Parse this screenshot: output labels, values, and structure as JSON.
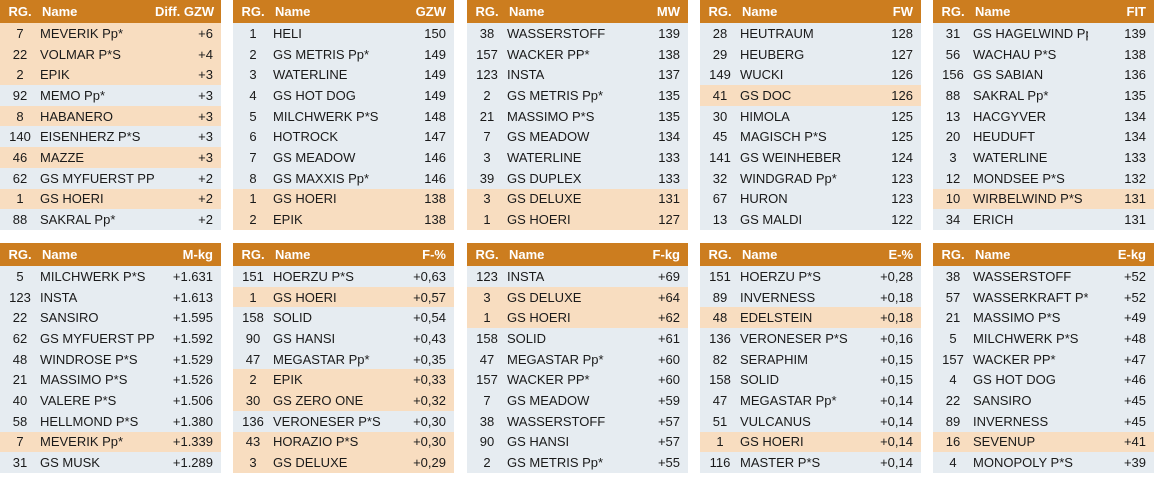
{
  "colors": {
    "header": "#cc7d1f",
    "row_default": "#e6ecf1",
    "row_highlight": "#f8ddc0"
  },
  "tables": [
    {
      "headers": {
        "rank": "RG.",
        "name": "Name",
        "value": "Diff. GZW"
      },
      "rows": [
        {
          "rank": "7",
          "name": "MEVERIK Pp*",
          "value": "+6",
          "highlight": true
        },
        {
          "rank": "22",
          "name": "VOLMAR P*S",
          "value": "+4",
          "highlight": true
        },
        {
          "rank": "2",
          "name": "EPIK",
          "value": "+3",
          "highlight": true
        },
        {
          "rank": "92",
          "name": "MEMO Pp*",
          "value": "+3",
          "highlight": false
        },
        {
          "rank": "8",
          "name": "HABANERO",
          "value": "+3",
          "highlight": true
        },
        {
          "rank": "140",
          "name": "EISENHERZ P*S",
          "value": "+3",
          "highlight": false
        },
        {
          "rank": "46",
          "name": "MAZZE",
          "value": "+3",
          "highlight": true
        },
        {
          "rank": "62",
          "name": "GS MYFUERST PP*",
          "value": "+2",
          "highlight": false
        },
        {
          "rank": "1",
          "name": "GS HOERI",
          "value": "+2",
          "highlight": true
        },
        {
          "rank": "88",
          "name": "SAKRAL Pp*",
          "value": "+2",
          "highlight": false
        }
      ]
    },
    {
      "headers": {
        "rank": "RG.",
        "name": "Name",
        "value": "GZW"
      },
      "rows": [
        {
          "rank": "1",
          "name": "HELI",
          "value": "150",
          "highlight": false
        },
        {
          "rank": "2",
          "name": "GS METRIS Pp*",
          "value": "149",
          "highlight": false
        },
        {
          "rank": "3",
          "name": "WATERLINE",
          "value": "149",
          "highlight": false
        },
        {
          "rank": "4",
          "name": "GS HOT DOG",
          "value": "149",
          "highlight": false
        },
        {
          "rank": "5",
          "name": "MILCHWERK P*S",
          "value": "148",
          "highlight": false
        },
        {
          "rank": "6",
          "name": "HOTROCK",
          "value": "147",
          "highlight": false
        },
        {
          "rank": "7",
          "name": "GS MEADOW",
          "value": "146",
          "highlight": false
        },
        {
          "rank": "8",
          "name": "GS MAXXIS Pp*",
          "value": "146",
          "highlight": false
        },
        {
          "rank": "1",
          "name": "GS HOERI",
          "value": "138",
          "highlight": true
        },
        {
          "rank": "2",
          "name": "EPIK",
          "value": "138",
          "highlight": true
        }
      ]
    },
    {
      "headers": {
        "rank": "RG.",
        "name": "Name",
        "value": "MW"
      },
      "rows": [
        {
          "rank": "38",
          "name": "WASSERSTOFF",
          "value": "139",
          "highlight": false
        },
        {
          "rank": "157",
          "name": "WACKER PP*",
          "value": "138",
          "highlight": false
        },
        {
          "rank": "123",
          "name": "INSTA",
          "value": "137",
          "highlight": false
        },
        {
          "rank": "2",
          "name": "GS METRIS Pp*",
          "value": "135",
          "highlight": false
        },
        {
          "rank": "21",
          "name": "MASSIMO P*S",
          "value": "135",
          "highlight": false
        },
        {
          "rank": "7",
          "name": "GS MEADOW",
          "value": "134",
          "highlight": false
        },
        {
          "rank": "3",
          "name": "WATERLINE",
          "value": "133",
          "highlight": false
        },
        {
          "rank": "39",
          "name": "GS DUPLEX",
          "value": "133",
          "highlight": false
        },
        {
          "rank": "3",
          "name": "GS DELUXE",
          "value": "131",
          "highlight": true
        },
        {
          "rank": "1",
          "name": "GS HOERI",
          "value": "127",
          "highlight": true
        }
      ]
    },
    {
      "headers": {
        "rank": "RG.",
        "name": "Name",
        "value": "FW"
      },
      "rows": [
        {
          "rank": "28",
          "name": "HEUTRAUM",
          "value": "128",
          "highlight": false
        },
        {
          "rank": "29",
          "name": "HEUBERG",
          "value": "127",
          "highlight": false
        },
        {
          "rank": "149",
          "name": "WUCKI",
          "value": "126",
          "highlight": false
        },
        {
          "rank": "41",
          "name": "GS DOC",
          "value": "126",
          "highlight": true
        },
        {
          "rank": "30",
          "name": "HIMOLA",
          "value": "125",
          "highlight": false
        },
        {
          "rank": "45",
          "name": "MAGISCH P*S",
          "value": "125",
          "highlight": false
        },
        {
          "rank": "141",
          "name": "GS WEINHEBER",
          "value": "124",
          "highlight": false
        },
        {
          "rank": "32",
          "name": "WINDGRAD Pp*",
          "value": "123",
          "highlight": false
        },
        {
          "rank": "67",
          "name": "HURON",
          "value": "123",
          "highlight": false
        },
        {
          "rank": "13",
          "name": "GS MALDI",
          "value": "122",
          "highlight": false
        }
      ]
    },
    {
      "headers": {
        "rank": "RG.",
        "name": "Name",
        "value": "FIT"
      },
      "rows": [
        {
          "rank": "31",
          "name": "GS HAGELWIND Pp*",
          "value": "139",
          "highlight": false
        },
        {
          "rank": "56",
          "name": "WACHAU P*S",
          "value": "138",
          "highlight": false
        },
        {
          "rank": "156",
          "name": "GS SABIAN",
          "value": "136",
          "highlight": false
        },
        {
          "rank": "88",
          "name": "SAKRAL Pp*",
          "value": "135",
          "highlight": false
        },
        {
          "rank": "13",
          "name": "HACGYVER",
          "value": "134",
          "highlight": false
        },
        {
          "rank": "20",
          "name": "HEUDUFT",
          "value": "134",
          "highlight": false
        },
        {
          "rank": "3",
          "name": "WATERLINE",
          "value": "133",
          "highlight": false
        },
        {
          "rank": "12",
          "name": "MONDSEE P*S",
          "value": "132",
          "highlight": false
        },
        {
          "rank": "10",
          "name": "WIRBELWIND P*S",
          "value": "131",
          "highlight": true
        },
        {
          "rank": "34",
          "name": "ERICH",
          "value": "131",
          "highlight": false
        }
      ]
    },
    {
      "headers": {
        "rank": "RG.",
        "name": "Name",
        "value": "M-kg"
      },
      "rows": [
        {
          "rank": "5",
          "name": "MILCHWERK P*S",
          "value": "+1.631",
          "highlight": false
        },
        {
          "rank": "123",
          "name": "INSTA",
          "value": "+1.613",
          "highlight": false
        },
        {
          "rank": "22",
          "name": "SANSIRO",
          "value": "+1.595",
          "highlight": false
        },
        {
          "rank": "62",
          "name": "GS MYFUERST PP*",
          "value": "+1.592",
          "highlight": false
        },
        {
          "rank": "48",
          "name": "WINDROSE P*S",
          "value": "+1.529",
          "highlight": false
        },
        {
          "rank": "21",
          "name": "MASSIMO P*S",
          "value": "+1.526",
          "highlight": false
        },
        {
          "rank": "40",
          "name": "VALERE P*S",
          "value": "+1.506",
          "highlight": false
        },
        {
          "rank": "58",
          "name": "HELLMOND P*S",
          "value": "+1.380",
          "highlight": false
        },
        {
          "rank": "7",
          "name": "MEVERIK Pp*",
          "value": "+1.339",
          "highlight": true
        },
        {
          "rank": "31",
          "name": "GS MUSK",
          "value": "+1.289",
          "highlight": false
        }
      ]
    },
    {
      "headers": {
        "rank": "RG.",
        "name": "Name",
        "value": "F-%"
      },
      "rows": [
        {
          "rank": "151",
          "name": "HOERZU P*S",
          "value": "+0,63",
          "highlight": false
        },
        {
          "rank": "1",
          "name": "GS HOERI",
          "value": "+0,57",
          "highlight": true
        },
        {
          "rank": "158",
          "name": "SOLID",
          "value": "+0,54",
          "highlight": false
        },
        {
          "rank": "90",
          "name": "GS HANSI",
          "value": "+0,43",
          "highlight": false
        },
        {
          "rank": "47",
          "name": "MEGASTAR Pp*",
          "value": "+0,35",
          "highlight": false
        },
        {
          "rank": "2",
          "name": "EPIK",
          "value": "+0,33",
          "highlight": true
        },
        {
          "rank": "30",
          "name": "GS ZERO ONE",
          "value": "+0,32",
          "highlight": true
        },
        {
          "rank": "136",
          "name": "VERONESER P*S",
          "value": "+0,30",
          "highlight": false
        },
        {
          "rank": "43",
          "name": "HORAZIO P*S",
          "value": "+0,30",
          "highlight": true
        },
        {
          "rank": "3",
          "name": "GS DELUXE",
          "value": "+0,29",
          "highlight": true
        }
      ]
    },
    {
      "headers": {
        "rank": "RG.",
        "name": "Name",
        "value": "F-kg"
      },
      "rows": [
        {
          "rank": "123",
          "name": "INSTA",
          "value": "+69",
          "highlight": false
        },
        {
          "rank": "3",
          "name": "GS DELUXE",
          "value": "+64",
          "highlight": true
        },
        {
          "rank": "1",
          "name": "GS HOERI",
          "value": "+62",
          "highlight": true
        },
        {
          "rank": "158",
          "name": "SOLID",
          "value": "+61",
          "highlight": false
        },
        {
          "rank": "47",
          "name": "MEGASTAR Pp*",
          "value": "+60",
          "highlight": false
        },
        {
          "rank": "157",
          "name": "WACKER PP*",
          "value": "+60",
          "highlight": false
        },
        {
          "rank": "7",
          "name": "GS MEADOW",
          "value": "+59",
          "highlight": false
        },
        {
          "rank": "38",
          "name": "WASSERSTOFF",
          "value": "+57",
          "highlight": false
        },
        {
          "rank": "90",
          "name": "GS HANSI",
          "value": "+57",
          "highlight": false
        },
        {
          "rank": "2",
          "name": "GS METRIS Pp*",
          "value": "+55",
          "highlight": false
        }
      ]
    },
    {
      "headers": {
        "rank": "RG.",
        "name": "Name",
        "value": "E-%"
      },
      "rows": [
        {
          "rank": "151",
          "name": "HOERZU P*S",
          "value": "+0,28",
          "highlight": false
        },
        {
          "rank": "89",
          "name": "INVERNESS",
          "value": "+0,18",
          "highlight": false
        },
        {
          "rank": "48",
          "name": "EDELSTEIN",
          "value": "+0,18",
          "highlight": true
        },
        {
          "rank": "136",
          "name": "VERONESER P*S",
          "value": "+0,16",
          "highlight": false
        },
        {
          "rank": "82",
          "name": "SERAPHIM",
          "value": "+0,15",
          "highlight": false
        },
        {
          "rank": "158",
          "name": "SOLID",
          "value": "+0,15",
          "highlight": false
        },
        {
          "rank": "47",
          "name": "MEGASTAR Pp*",
          "value": "+0,14",
          "highlight": false
        },
        {
          "rank": "51",
          "name": "VULCANUS",
          "value": "+0,14",
          "highlight": false
        },
        {
          "rank": "1",
          "name": "GS HOERI",
          "value": "+0,14",
          "highlight": true
        },
        {
          "rank": "116",
          "name": "MASTER P*S",
          "value": "+0,14",
          "highlight": false
        }
      ]
    },
    {
      "headers": {
        "rank": "RG.",
        "name": "Name",
        "value": "E-kg"
      },
      "rows": [
        {
          "rank": "38",
          "name": "WASSERSTOFF",
          "value": "+52",
          "highlight": false
        },
        {
          "rank": "57",
          "name": "WASSERKRAFT P*S",
          "value": "+52",
          "highlight": false
        },
        {
          "rank": "21",
          "name": "MASSIMO P*S",
          "value": "+49",
          "highlight": false
        },
        {
          "rank": "5",
          "name": "MILCHWERK P*S",
          "value": "+48",
          "highlight": false
        },
        {
          "rank": "157",
          "name": "WACKER PP*",
          "value": "+47",
          "highlight": false
        },
        {
          "rank": "4",
          "name": "GS HOT DOG",
          "value": "+46",
          "highlight": false
        },
        {
          "rank": "22",
          "name": "SANSIRO",
          "value": "+45",
          "highlight": false
        },
        {
          "rank": "89",
          "name": "INVERNESS",
          "value": "+45",
          "highlight": false
        },
        {
          "rank": "16",
          "name": "SEVENUP",
          "value": "+41",
          "highlight": true
        },
        {
          "rank": "4",
          "name": "MONOPOLY P*S",
          "value": "+39",
          "highlight": false
        }
      ]
    }
  ]
}
